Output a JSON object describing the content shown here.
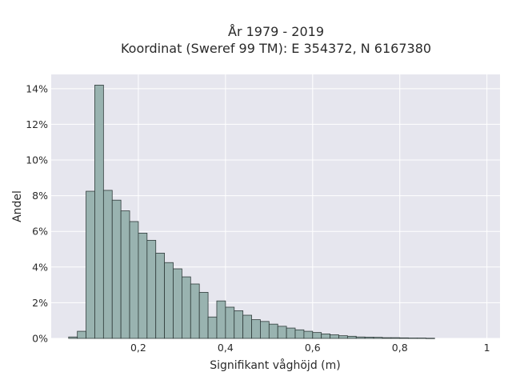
{
  "chart_data": {
    "type": "bar",
    "title_lines": [
      "År 1979 - 2019",
      "Koordinat (Sweref 99 TM): E 354372, N 6167380"
    ],
    "xlabel": "Signifikant våghöjd (m)",
    "ylabel": "Andel",
    "xlim": [
      0.0,
      1.03
    ],
    "ylim": [
      0,
      0.148
    ],
    "x_ticks": [
      0.2,
      0.4,
      0.6,
      0.8,
      1.0
    ],
    "x_tick_labels": [
      "0,2",
      "0,4",
      "0,6",
      "0,8",
      "1"
    ],
    "y_ticks": [
      0,
      0.02,
      0.04,
      0.06,
      0.08,
      0.1,
      0.12,
      0.14
    ],
    "y_tick_labels": [
      "0%",
      "2%",
      "4%",
      "6%",
      "8%",
      "10%",
      "12%",
      "14%"
    ],
    "bin_width": 0.02,
    "bin_starts": [
      0.04,
      0.06,
      0.08,
      0.1,
      0.12,
      0.14,
      0.16,
      0.18,
      0.2,
      0.22,
      0.24,
      0.26,
      0.28,
      0.3,
      0.32,
      0.34,
      0.36,
      0.38,
      0.4,
      0.42,
      0.44,
      0.46,
      0.48,
      0.5,
      0.52,
      0.54,
      0.56,
      0.58,
      0.6,
      0.62,
      0.64,
      0.66,
      0.68,
      0.7,
      0.72,
      0.74,
      0.76,
      0.78,
      0.8,
      0.82,
      0.84,
      0.86
    ],
    "values": [
      0.0008,
      0.004,
      0.0825,
      0.142,
      0.083,
      0.0775,
      0.0715,
      0.0655,
      0.059,
      0.055,
      0.0478,
      0.0425,
      0.039,
      0.0345,
      0.0305,
      0.0258,
      0.012,
      0.021,
      0.0175,
      0.0155,
      0.013,
      0.0105,
      0.0095,
      0.008,
      0.0068,
      0.0058,
      0.0048,
      0.004,
      0.0033,
      0.0025,
      0.002,
      0.0015,
      0.0012,
      0.0008,
      0.0007,
      0.0006,
      0.0004,
      0.0004,
      0.0003,
      0.0002,
      0.0002,
      0.0001
    ],
    "grid": true,
    "background_color": "#e6e6ee",
    "bar_color": "#99b3b0",
    "bar_edge_color": "#2f3b3a",
    "legend": "none"
  }
}
